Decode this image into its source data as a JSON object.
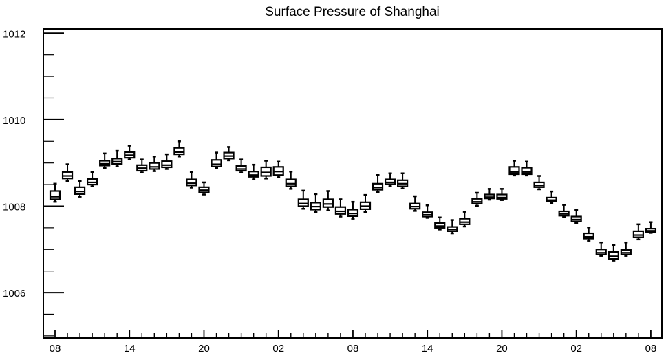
{
  "chart_data": {
    "type": "box",
    "title": "Surface Pressure of Shanghai",
    "xlabel": "",
    "ylabel": "",
    "ylim": [
      1004.95,
      1012.1
    ],
    "y_ticks": [
      1006,
      1008,
      1010,
      1012
    ],
    "x_tick_labels": [
      "08",
      "14",
      "20",
      "02",
      "08",
      "14",
      "20",
      "02",
      "08"
    ],
    "x_tick_hours": [
      0,
      6,
      12,
      18,
      24,
      30,
      36,
      42,
      48
    ],
    "grid": false,
    "series": [
      {
        "x": [
          0,
          1,
          2,
          3,
          4,
          5,
          6,
          7,
          8,
          9,
          10,
          11,
          12,
          13,
          14,
          15,
          16,
          17,
          18,
          19,
          20,
          21,
          22,
          23,
          24,
          25,
          26,
          27,
          28,
          29,
          30,
          31,
          32,
          33,
          34,
          35,
          36,
          37,
          38,
          39,
          40,
          41,
          42,
          43,
          44,
          45,
          46,
          47,
          48
        ],
        "min": [
          1008.1,
          1008.58,
          1008.22,
          1008.46,
          1008.88,
          1008.92,
          1009.08,
          1008.78,
          1008.81,
          1008.86,
          1009.15,
          1008.43,
          1008.27,
          1008.88,
          1009.06,
          1008.78,
          1008.62,
          1008.64,
          1008.67,
          1008.4,
          1007.94,
          1007.86,
          1007.9,
          1007.76,
          1007.71,
          1007.86,
          1008.33,
          1008.46,
          1008.41,
          1007.89,
          1007.73,
          1007.46,
          1007.37,
          1007.53,
          1008.01,
          1008.15,
          1008.14,
          1008.71,
          1008.71,
          1008.39,
          1008.07,
          1007.75,
          1007.61,
          1007.2,
          1006.85,
          1006.74,
          1006.85,
          1007.23,
          1007.38
        ],
        "q1": [
          1008.16,
          1008.64,
          1008.28,
          1008.5,
          1008.94,
          1008.98,
          1009.12,
          1008.82,
          1008.86,
          1008.9,
          1009.2,
          1008.48,
          1008.32,
          1008.92,
          1009.1,
          1008.82,
          1008.68,
          1008.7,
          1008.72,
          1008.46,
          1008.0,
          1007.92,
          1007.98,
          1007.82,
          1007.77,
          1007.93,
          1008.38,
          1008.51,
          1008.46,
          1007.94,
          1007.76,
          1007.5,
          1007.42,
          1007.58,
          1008.06,
          1008.18,
          1008.17,
          1008.74,
          1008.74,
          1008.44,
          1008.11,
          1007.78,
          1007.65,
          1007.25,
          1006.88,
          1006.78,
          1006.88,
          1007.28,
          1007.4
        ],
        "median": [
          1008.22,
          1008.7,
          1008.34,
          1008.55,
          1008.98,
          1009.03,
          1009.18,
          1008.88,
          1008.91,
          1008.95,
          1009.25,
          1008.53,
          1008.37,
          1008.97,
          1009.16,
          1008.86,
          1008.72,
          1008.78,
          1008.8,
          1008.52,
          1008.06,
          1007.99,
          1008.05,
          1007.88,
          1007.83,
          1008.0,
          1008.43,
          1008.55,
          1008.52,
          1007.99,
          1007.8,
          1007.54,
          1007.46,
          1007.63,
          1008.1,
          1008.21,
          1008.2,
          1008.79,
          1008.79,
          1008.48,
          1008.14,
          1007.82,
          1007.69,
          1007.29,
          1006.92,
          1006.84,
          1006.92,
          1007.33,
          1007.43
        ],
        "q3": [
          1008.35,
          1008.79,
          1008.44,
          1008.63,
          1009.05,
          1009.1,
          1009.25,
          1008.95,
          1009.0,
          1009.04,
          1009.35,
          1008.62,
          1008.44,
          1009.07,
          1009.24,
          1008.93,
          1008.8,
          1008.9,
          1008.91,
          1008.62,
          1008.16,
          1008.08,
          1008.16,
          1007.98,
          1007.92,
          1008.09,
          1008.52,
          1008.62,
          1008.6,
          1008.06,
          1007.86,
          1007.61,
          1007.52,
          1007.71,
          1008.17,
          1008.27,
          1008.27,
          1008.91,
          1008.89,
          1008.55,
          1008.2,
          1007.88,
          1007.76,
          1007.37,
          1007.0,
          1006.94,
          1006.99,
          1007.42,
          1007.48
        ],
        "max": [
          1008.52,
          1008.97,
          1008.58,
          1008.79,
          1009.22,
          1009.28,
          1009.4,
          1009.08,
          1009.15,
          1009.2,
          1009.5,
          1008.79,
          1008.55,
          1009.24,
          1009.37,
          1009.08,
          1008.96,
          1009.05,
          1009.03,
          1008.8,
          1008.36,
          1008.28,
          1008.35,
          1008.16,
          1008.1,
          1008.26,
          1008.72,
          1008.76,
          1008.76,
          1008.23,
          1008.02,
          1007.74,
          1007.68,
          1007.87,
          1008.31,
          1008.4,
          1008.4,
          1009.05,
          1009.03,
          1008.7,
          1008.34,
          1008.03,
          1007.91,
          1007.51,
          1007.16,
          1007.1,
          1007.16,
          1007.58,
          1007.63
        ]
      }
    ]
  }
}
